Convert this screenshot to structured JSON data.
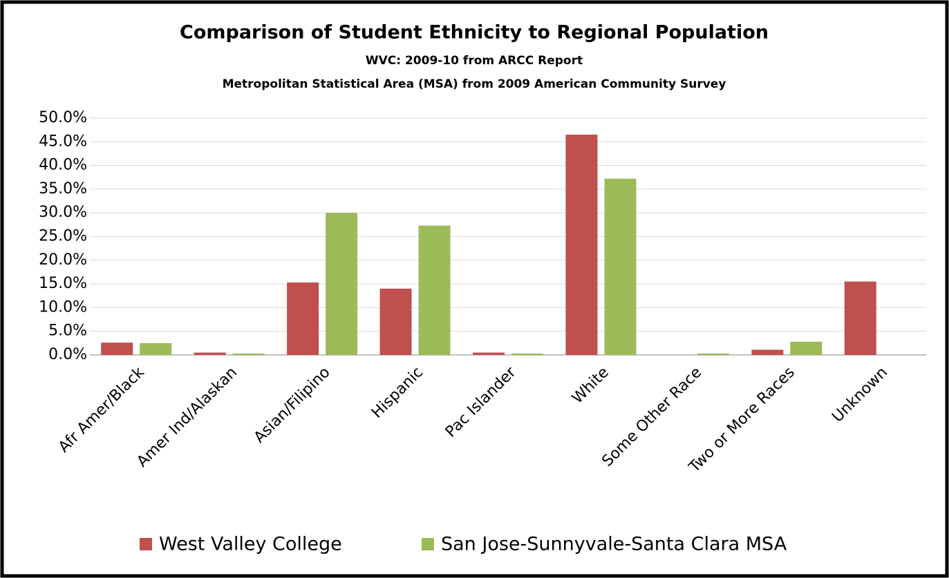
{
  "chart_data": {
    "type": "bar",
    "title": "Comparison of Student Ethnicity to Regional Population",
    "subtitle": [
      "WVC:  2009-10 from ARCC Report",
      "Metropolitan Statistical Area (MSA) from 2009 American Community Survey"
    ],
    "categories": [
      "Afr Amer/Black",
      "Amer Ind/Alaskan",
      "Asian/Filipino",
      "Hispanic",
      "Pac Islander",
      "White",
      "Some Other Race",
      "Two or More Races",
      "Unknown"
    ],
    "series": [
      {
        "name": "West Valley College",
        "color": "#c0504d",
        "values": [
          2.6,
          0.5,
          15.3,
          14.0,
          0.5,
          46.5,
          null,
          1.1,
          15.5
        ]
      },
      {
        "name": "San Jose-Sunnyvale-Santa Clara MSA",
        "color": "#9bbb59",
        "values": [
          2.5,
          0.3,
          30.0,
          27.3,
          0.3,
          37.2,
          0.3,
          2.8,
          null
        ]
      }
    ],
    "ylim": [
      0,
      50
    ],
    "yticks": [
      {
        "value": 0,
        "label": "0.0%"
      },
      {
        "value": 5,
        "label": "5.0%"
      },
      {
        "value": 10,
        "label": "10.0%"
      },
      {
        "value": 15,
        "label": "15.0%"
      },
      {
        "value": 20,
        "label": "20.0%"
      },
      {
        "value": 25,
        "label": "25.0%"
      },
      {
        "value": 30,
        "label": "30.0%"
      },
      {
        "value": 35,
        "label": "35.0%"
      },
      {
        "value": 40,
        "label": "40.0%"
      },
      {
        "value": 45,
        "label": "45.0%"
      },
      {
        "value": 50,
        "label": "50.0%"
      }
    ],
    "grid": true,
    "legend": "bottom"
  }
}
